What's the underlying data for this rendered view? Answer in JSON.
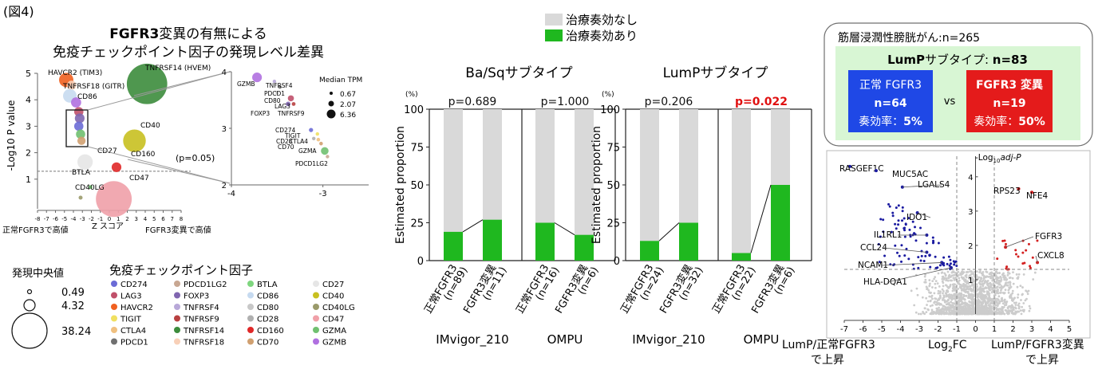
{
  "figure_label": "(図4)",
  "panel1": {
    "title_line1_bold": "FGFR3",
    "title_line1_rest": "変異の有無による",
    "title_line2": "免疫チェックポイント因子の発現レベル差異",
    "y_axis_label": "-Log10 P value",
    "x_axis_label": "Z スコア",
    "x_left_note": "正常FGFR3で高値",
    "x_right_note": "FGFR3変異で高値",
    "threshold_label": "(p=0.05)",
    "inset_legend_title": "Median TPM",
    "inset_legend_values": [
      "0.67",
      "2.07",
      "6.36"
    ],
    "size_legend_title": "発現中央値",
    "size_legend_values": [
      "0.49",
      "4.32",
      "38.24"
    ],
    "legend_title": "免疫チェックポイント因子",
    "legend_items": [
      {
        "name": "CD274",
        "color": "#6b6bd6"
      },
      {
        "name": "PDCD1LG2",
        "color": "#c8a792"
      },
      {
        "name": "BTLA",
        "color": "#7fd67f"
      },
      {
        "name": "CD27",
        "color": "#e6e6e6"
      },
      {
        "name": "LAG3",
        "color": "#c0506a"
      },
      {
        "name": "FOXP3",
        "color": "#8066b0"
      },
      {
        "name": "CD86",
        "color": "#c6daf0"
      },
      {
        "name": "CD40",
        "color": "#c8c020"
      },
      {
        "name": "HAVCR2",
        "color": "#f06020"
      },
      {
        "name": "TNFRSF4",
        "color": "#b8a8d8"
      },
      {
        "name": "CD80",
        "color": "#c8c8c8"
      },
      {
        "name": "CD40LG",
        "color": "#9a9a6a"
      },
      {
        "name": "TIGIT",
        "color": "#f0e060"
      },
      {
        "name": "TNFRSF9",
        "color": "#b84040"
      },
      {
        "name": "CD28",
        "color": "#b0b0b0"
      },
      {
        "name": "CD47",
        "color": "#f0a0a8"
      },
      {
        "name": "CTLA4",
        "color": "#f0c080"
      },
      {
        "name": "TNFRSF14",
        "color": "#3c8c3c"
      },
      {
        "name": "CD160",
        "color": "#e02828"
      },
      {
        "name": "GZMA",
        "color": "#70c070"
      },
      {
        "name": "PDCD1",
        "color": "#707070"
      },
      {
        "name": "TNFRSF18",
        "color": "#f8d0b8"
      },
      {
        "name": "CD70",
        "color": "#d0a070"
      },
      {
        "name": "GZMB",
        "color": "#b070e0"
      }
    ]
  },
  "bars": {
    "legend": [
      {
        "label": "治療奏効なし",
        "color": "#d9d9d9"
      },
      {
        "label": "治療奏効あり",
        "color": "#1fb81f"
      }
    ],
    "y_axis_label": "Estimated proportion",
    "y_unit": "(%)",
    "cohorts": [
      "IMvigor_210",
      "OMPU"
    ],
    "panels": [
      {
        "title": "Ba/Sqサブタイプ",
        "pvalues": [
          {
            "text": "p=0.689",
            "highlight": false
          },
          {
            "text": "p=1.000",
            "highlight": false
          }
        ]
      },
      {
        "title": "LumPサブタイプ",
        "pvalues": [
          {
            "text": "p=0.206",
            "highlight": false
          },
          {
            "text": "p=0.022",
            "highlight": true
          }
        ]
      }
    ]
  },
  "info_box": {
    "header": "筋層浸潤性膀胱がん:n=265",
    "subtype_bold": "LumP",
    "subtype_rest": "サブタイプ: ",
    "subtype_n": "n=83",
    "vs": "vs",
    "left": {
      "line1": "正常 FGFR3",
      "line2": "n=64",
      "line3_prefix": "奏効率：",
      "line3_value": "5%"
    },
    "right": {
      "line1": "FGFR3 変異",
      "line2": "n=19",
      "line3_prefix": "奏効率：",
      "line3_value": "50%"
    }
  },
  "volcano": {
    "y_label_prefix": "-Log",
    "y_label_sub": "10",
    "y_label_suffix": "adj-P",
    "x_label_prefix": "Log",
    "x_label_sub": "2",
    "x_label_suffix": "FC",
    "left_note_line1": "LumP/正常FGFR3",
    "left_note_line2": "で上昇",
    "right_note_line1": "LumP/FGFR3変異",
    "right_note_line2": "で上昇"
  },
  "chart_data": [
    {
      "type": "scatter",
      "title": "FGFR3変異の有無による 免疫チェックポイント因子の発現レベル差異",
      "xlabel": "Z スコア",
      "ylabel": "-Log10 P value",
      "xlim": [
        -8,
        8
      ],
      "ylim": [
        0,
        5
      ],
      "xticks": [
        "-8",
        "-7",
        "-6",
        "-5",
        "-4",
        "-3",
        "-2",
        "-1",
        "0",
        "1",
        "2",
        "3",
        "4",
        "5",
        "6",
        "7",
        "8"
      ],
      "yticks": [
        "1",
        "2",
        "3",
        "4",
        "5"
      ],
      "threshold_y": 1.3,
      "points": [
        {
          "label": "HAVCR2 (TIM3)",
          "x": -4.8,
          "y": 4.75,
          "size": 4.8,
          "color": "#f06020"
        },
        {
          "label": "TNFRSF18 (GITR)",
          "x": -4.2,
          "y": 4.55,
          "size": 2.0,
          "color": "#f8d0b8"
        },
        {
          "label": "CD86",
          "x": -4.4,
          "y": 4.15,
          "size": 4.3,
          "color": "#c6daf0"
        },
        {
          "label": "",
          "x": -3.7,
          "y": 3.9,
          "size": 2.4,
          "color": "#b070e0"
        },
        {
          "label": "",
          "x": -3.4,
          "y": 3.55,
          "size": 2.0,
          "color": "#c0506a"
        },
        {
          "label": "",
          "x": -3.3,
          "y": 3.3,
          "size": 2.2,
          "color": "#8066b0"
        },
        {
          "label": "",
          "x": -3.4,
          "y": 3.0,
          "size": 2.0,
          "color": "#6b6bd6"
        },
        {
          "label": "",
          "x": -3.2,
          "y": 2.7,
          "size": 2.0,
          "color": "#70c070"
        },
        {
          "label": "",
          "x": -3.1,
          "y": 2.45,
          "size": 1.6,
          "color": "#d0a070"
        },
        {
          "label": "TNFRSF14 (HVEM)",
          "x": 4.2,
          "y": 4.6,
          "size": 38.24,
          "color": "#3c8c3c"
        },
        {
          "label": "CD40",
          "x": 2.8,
          "y": 2.45,
          "size": 12.0,
          "color": "#c8c020"
        },
        {
          "label": "CD27",
          "x": -2.7,
          "y": 1.65,
          "size": 5.5,
          "color": "#e6e6e6"
        },
        {
          "label": "CD160",
          "x": 0.8,
          "y": 1.45,
          "size": 2.2,
          "color": "#e02828"
        },
        {
          "label": "BTLA",
          "x": -2.1,
          "y": 0.7,
          "size": 0.3,
          "color": "#7fd67f"
        },
        {
          "label": "CD47",
          "x": 0.5,
          "y": 0.25,
          "size": 30.0,
          "color": "#f0a0a8"
        },
        {
          "label": "CD40LG",
          "x": -3.2,
          "y": 0.3,
          "size": 0.3,
          "color": "#9a9a6a"
        }
      ],
      "inset": {
        "xlim": [
          -4,
          -2.5
        ],
        "ylim": [
          2,
          4
        ],
        "xticks": [
          "-4",
          "-3"
        ],
        "yticks": [
          "2",
          "3",
          "4"
        ],
        "points": [
          {
            "label": "GZMB",
            "x": -3.72,
            "y": 3.9,
            "size": 6.36,
            "color": "#b070e0"
          },
          {
            "label": "TNFRSF4",
            "x": -3.53,
            "y": 3.83,
            "size": 0.67,
            "color": "#b8a8d8"
          },
          {
            "label": "PDCD1",
            "x": -3.47,
            "y": 3.73,
            "size": 0.67,
            "color": "#707070"
          },
          {
            "label": "CD80",
            "x": -3.5,
            "y": 3.63,
            "size": 0.67,
            "color": "#c8c8c8"
          },
          {
            "label": "LAG3",
            "x": -3.35,
            "y": 3.53,
            "size": 2.5,
            "color": "#c0506a"
          },
          {
            "label": "FOXP3",
            "x": -3.38,
            "y": 3.43,
            "size": 1.5,
            "color": "#8066b0"
          },
          {
            "label": "TNFRSF9",
            "x": -3.32,
            "y": 3.43,
            "size": 1.0,
            "color": "#b84040"
          },
          {
            "label": "CD274",
            "x": -3.13,
            "y": 2.97,
            "size": 1.2,
            "color": "#6b6bd6"
          },
          {
            "label": "TIGIT",
            "x": -3.06,
            "y": 2.9,
            "size": 0.7,
            "color": "#f0e060"
          },
          {
            "label": "CD28",
            "x": -3.1,
            "y": 2.82,
            "size": 0.7,
            "color": "#b0b0b0"
          },
          {
            "label": "CTLA4",
            "x": -3.05,
            "y": 2.8,
            "size": 0.9,
            "color": "#f0c080"
          },
          {
            "label": "CD70",
            "x": -3.02,
            "y": 2.73,
            "size": 0.9,
            "color": "#d0a070"
          },
          {
            "label": "GZMA",
            "x": -2.98,
            "y": 2.6,
            "size": 4.0,
            "color": "#70c070"
          },
          {
            "label": "PDCD1LG2",
            "x": -2.95,
            "y": 2.5,
            "size": 0.8,
            "color": "#c8a792"
          }
        ]
      }
    },
    {
      "type": "bar",
      "title": "Ba/Sqサブタイプ",
      "ylabel": "Estimated proportion",
      "ylim": [
        0,
        100
      ],
      "yticks": [
        "0",
        "25",
        "50",
        "75",
        "100"
      ],
      "groups": [
        {
          "cohort": "IMvigor_210",
          "pvalue": "p=0.689",
          "categories": [
            {
              "l1": "正常FGFR3",
              "l2": "(n=89)",
              "response": 19
            },
            {
              "l1": "FGFR3変異",
              "l2": "(n=11)",
              "response": 27
            }
          ]
        },
        {
          "cohort": "OMPU",
          "pvalue": "p=1.000",
          "categories": [
            {
              "l1": "正常FGFR3",
              "l2": "(n=16)",
              "response": 25
            },
            {
              "l1": "FGFR3変異",
              "l2": "(n=6)",
              "response": 17
            }
          ]
        }
      ],
      "series": [
        {
          "name": "治療奏効あり",
          "color": "#1fb81f"
        },
        {
          "name": "治療奏効なし",
          "color": "#d9d9d9"
        }
      ]
    },
    {
      "type": "bar",
      "title": "LumPサブタイプ",
      "ylabel": "Estimated proportion",
      "ylim": [
        0,
        100
      ],
      "yticks": [
        "0",
        "25",
        "50",
        "75",
        "100"
      ],
      "groups": [
        {
          "cohort": "IMvigor_210",
          "pvalue": "p=0.206",
          "categories": [
            {
              "l1": "正常FGFR3",
              "l2": "(n=24)",
              "response": 13
            },
            {
              "l1": "FGFR3変異",
              "l2": "(n=32)",
              "response": 25
            }
          ]
        },
        {
          "cohort": "OMPU",
          "pvalue": "p=0.022",
          "categories": [
            {
              "l1": "正常FGFR3",
              "l2": "(n=22)",
              "response": 5
            },
            {
              "l1": "FGFR3変異",
              "l2": "(n=6)",
              "response": 50
            }
          ]
        }
      ],
      "series": [
        {
          "name": "治療奏効あり",
          "color": "#1fb81f"
        },
        {
          "name": "治療奏効なし",
          "color": "#d9d9d9"
        }
      ]
    },
    {
      "type": "scatter",
      "title": "",
      "xlabel": "Log2FC",
      "ylabel": "-Log10adj-P",
      "xlim": [
        -7,
        5
      ],
      "ylim": [
        0,
        4.6
      ],
      "xticks": [
        "-7",
        "-6",
        "-5",
        "-4",
        "-3",
        "-2",
        "-1",
        "0",
        "1",
        "2",
        "3",
        "4",
        "5"
      ],
      "yticks": [
        "1",
        "2",
        "3",
        "4"
      ],
      "hline": 1.3,
      "vlines": [
        -1,
        1
      ],
      "labeled_points": [
        {
          "label": "RASGEF1C",
          "x": -6.7,
          "y": 4.3,
          "color": "#1a1aa0"
        },
        {
          "label": "MUC5AC",
          "x": -5.3,
          "y": 4.18,
          "color": "#1a1aa0"
        },
        {
          "label": "LGALS4",
          "x": -3.9,
          "y": 3.7,
          "color": "#1a1aa0"
        },
        {
          "label": "IDO1",
          "x": -3.1,
          "y": 2.95,
          "color": "#1a1aa0"
        },
        {
          "label": "IL1RL1",
          "x": -2.6,
          "y": 2.3,
          "color": "#1a1aa0"
        },
        {
          "label": "CCL24",
          "x": -2.6,
          "y": 1.8,
          "color": "#1a1aa0"
        },
        {
          "label": "NCAM1",
          "x": -1.8,
          "y": 1.5,
          "color": "#1a1aa0"
        },
        {
          "label": "HLA-DQA1",
          "x": -1.3,
          "y": 1.35,
          "color": "#1a1aa0"
        },
        {
          "label": "RPS23",
          "x": 2.3,
          "y": 3.65,
          "color": "#d42020"
        },
        {
          "label": "NFE4",
          "x": 3.0,
          "y": 3.55,
          "color": "#d42020"
        },
        {
          "label": "FGFR3",
          "x": 1.6,
          "y": 1.95,
          "color": "#d42020"
        },
        {
          "label": "CXCL8",
          "x": 3.3,
          "y": 1.5,
          "color": "#d42020"
        }
      ]
    }
  ]
}
